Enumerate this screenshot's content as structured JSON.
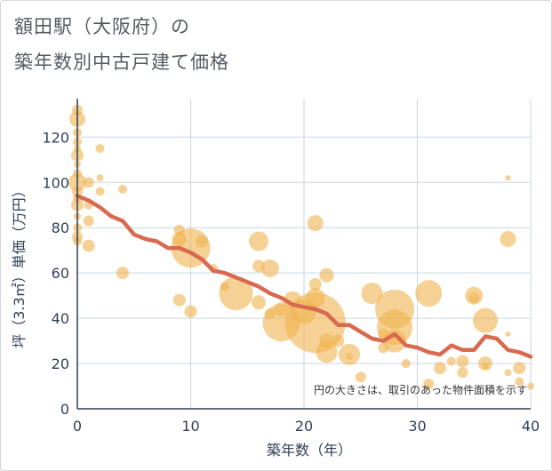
{
  "chart_data": {
    "type": "scatter",
    "title_line1": "額田駅（大阪府）の",
    "title_line2": "築年数別中古戸建て価格",
    "xlabel": "築年数（年）",
    "ylabel": "坪（3.3㎡）単価（万円）",
    "xlim": [
      0,
      40
    ],
    "ylim": [
      0,
      137
    ],
    "xticks": [
      0,
      10,
      20,
      30,
      40
    ],
    "yticks": [
      0,
      20,
      40,
      60,
      80,
      100,
      120
    ],
    "note": "円の大きさは、取引のあった物件面積を示す",
    "colors": {
      "bubble": "#f0b24f",
      "line": "#d9694f",
      "grid": "#c9d6e3"
    },
    "bubbles": [
      {
        "x": 0,
        "y": 128,
        "s": 9
      },
      {
        "x": 0,
        "y": 132,
        "s": 6
      },
      {
        "x": 0,
        "y": 122,
        "s": 5
      },
      {
        "x": 0,
        "y": 118,
        "s": 5
      },
      {
        "x": 0,
        "y": 115,
        "s": 4
      },
      {
        "x": 0,
        "y": 112,
        "s": 7
      },
      {
        "x": 0,
        "y": 108,
        "s": 4
      },
      {
        "x": 0,
        "y": 104,
        "s": 5
      },
      {
        "x": 0,
        "y": 100,
        "s": 10
      },
      {
        "x": 0,
        "y": 96,
        "s": 6
      },
      {
        "x": 0,
        "y": 93,
        "s": 5
      },
      {
        "x": 0,
        "y": 90,
        "s": 7
      },
      {
        "x": 0,
        "y": 85,
        "s": 4
      },
      {
        "x": 0,
        "y": 80,
        "s": 5
      },
      {
        "x": 0,
        "y": 76,
        "s": 6
      },
      {
        "x": 0,
        "y": 74,
        "s": 5
      },
      {
        "x": 1,
        "y": 100,
        "s": 6
      },
      {
        "x": 1,
        "y": 90,
        "s": 5
      },
      {
        "x": 1,
        "y": 83,
        "s": 6
      },
      {
        "x": 1,
        "y": 72,
        "s": 7
      },
      {
        "x": 2,
        "y": 115,
        "s": 5
      },
      {
        "x": 2,
        "y": 102,
        "s": 4
      },
      {
        "x": 2,
        "y": 96,
        "s": 5
      },
      {
        "x": 4,
        "y": 97,
        "s": 5
      },
      {
        "x": 4,
        "y": 60,
        "s": 7
      },
      {
        "x": 9,
        "y": 79,
        "s": 6
      },
      {
        "x": 9,
        "y": 75,
        "s": 8
      },
      {
        "x": 9,
        "y": 48,
        "s": 7
      },
      {
        "x": 10,
        "y": 71,
        "s": 22
      },
      {
        "x": 10,
        "y": 43,
        "s": 7
      },
      {
        "x": 11,
        "y": 74,
        "s": 7
      },
      {
        "x": 12,
        "y": 62,
        "s": 5
      },
      {
        "x": 13,
        "y": 54,
        "s": 5
      },
      {
        "x": 14,
        "y": 51,
        "s": 19
      },
      {
        "x": 16,
        "y": 74,
        "s": 11
      },
      {
        "x": 16,
        "y": 63,
        "s": 7
      },
      {
        "x": 16,
        "y": 47,
        "s": 8
      },
      {
        "x": 17,
        "y": 62,
        "s": 10
      },
      {
        "x": 17,
        "y": 42,
        "s": 6
      },
      {
        "x": 18,
        "y": 38,
        "s": 21
      },
      {
        "x": 18,
        "y": 44,
        "s": 8
      },
      {
        "x": 19,
        "y": 48,
        "s": 10
      },
      {
        "x": 20,
        "y": 43,
        "s": 14
      },
      {
        "x": 21,
        "y": 82,
        "s": 9
      },
      {
        "x": 21,
        "y": 55,
        "s": 7
      },
      {
        "x": 21,
        "y": 49,
        "s": 11
      },
      {
        "x": 21,
        "y": 38,
        "s": 34
      },
      {
        "x": 22,
        "y": 59,
        "s": 8
      },
      {
        "x": 22,
        "y": 25,
        "s": 12
      },
      {
        "x": 22,
        "y": 30,
        "s": 8
      },
      {
        "x": 23,
        "y": 30,
        "s": 7
      },
      {
        "x": 24,
        "y": 24,
        "s": 12
      },
      {
        "x": 24,
        "y": 23,
        "s": 4
      },
      {
        "x": 25,
        "y": 14,
        "s": 6
      },
      {
        "x": 26,
        "y": 51,
        "s": 12
      },
      {
        "x": 27,
        "y": 27,
        "s": 6
      },
      {
        "x": 27,
        "y": 33,
        "s": 6
      },
      {
        "x": 28,
        "y": 44,
        "s": 22
      },
      {
        "x": 28,
        "y": 36,
        "s": 20
      },
      {
        "x": 28,
        "y": 30,
        "s": 13
      },
      {
        "x": 29,
        "y": 20,
        "s": 5
      },
      {
        "x": 31,
        "y": 51,
        "s": 15
      },
      {
        "x": 31,
        "y": 11,
        "s": 6
      },
      {
        "x": 32,
        "y": 18,
        "s": 7
      },
      {
        "x": 33,
        "y": 21,
        "s": 5
      },
      {
        "x": 34,
        "y": 21,
        "s": 7
      },
      {
        "x": 34,
        "y": 16,
        "s": 6
      },
      {
        "x": 35,
        "y": 50,
        "s": 10
      },
      {
        "x": 35,
        "y": 49,
        "s": 6
      },
      {
        "x": 36,
        "y": 39,
        "s": 14
      },
      {
        "x": 36,
        "y": 20,
        "s": 8
      },
      {
        "x": 36,
        "y": 19,
        "s": 4
      },
      {
        "x": 38,
        "y": 102,
        "s": 3
      },
      {
        "x": 38,
        "y": 75,
        "s": 9
      },
      {
        "x": 38,
        "y": 33,
        "s": 3
      },
      {
        "x": 38,
        "y": 16,
        "s": 4
      },
      {
        "x": 39,
        "y": 18,
        "s": 7
      },
      {
        "x": 39,
        "y": 12,
        "s": 5
      },
      {
        "x": 40,
        "y": 10,
        "s": 4
      }
    ],
    "trend": {
      "x": [
        0,
        1,
        2,
        3,
        4,
        5,
        6,
        7,
        8,
        9,
        10,
        11,
        12,
        13,
        14,
        15,
        16,
        17,
        18,
        19,
        20,
        21,
        22,
        23,
        24,
        25,
        26,
        27,
        28,
        29,
        30,
        31,
        32,
        33,
        34,
        35,
        36,
        37,
        38,
        39,
        40
      ],
      "y": [
        94,
        92,
        89,
        85,
        83,
        77,
        75,
        74,
        71,
        71,
        69,
        66,
        61,
        60,
        58,
        56,
        54,
        51,
        49,
        46,
        45,
        44,
        42,
        37,
        37,
        34,
        31,
        30,
        33,
        28,
        27,
        25,
        24,
        28,
        26,
        26,
        32,
        31,
        26,
        25,
        23
      ]
    }
  }
}
